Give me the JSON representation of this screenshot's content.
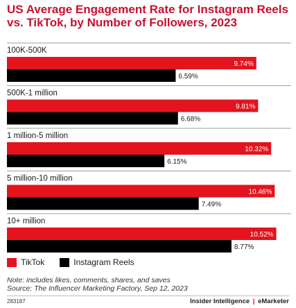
{
  "title": "US Average Engagement Rate for Instagram Reels vs. TikTok, by Number of Followers, 2023",
  "chart_data": {
    "type": "bar",
    "orientation": "horizontal",
    "categories": [
      "100K-500K",
      "500K-1 million",
      "1 million-5 million",
      "5 million-10 million",
      "10+ million"
    ],
    "series": [
      {
        "name": "TikTok",
        "values": [
          9.74,
          9.81,
          10.32,
          10.46,
          10.52
        ],
        "labels": [
          "9.74%",
          "9.81%",
          "10.32%",
          "10.46%",
          "10.52%"
        ],
        "color": "#e3141e"
      },
      {
        "name": "Instagram Reels",
        "values": [
          6.59,
          6.68,
          6.15,
          7.49,
          8.77
        ],
        "labels": [
          "6.59%",
          "6.68%",
          "6.15%",
          "7.49%",
          "8.77%"
        ],
        "color": "#000000"
      }
    ],
    "value_unit": "%",
    "xlim": [
      0,
      11.1
    ],
    "legend_position": "bottom-left",
    "grid": false
  },
  "legend": [
    {
      "label": "TikTok",
      "color": "#e3141e"
    },
    {
      "label": "Instagram Reels",
      "color": "#000000"
    }
  ],
  "notes": [
    "Note: includes likes, comments, shares, and saves",
    "Source: The Influencer Marketing Factory, Sep 12, 2023"
  ],
  "footer": {
    "chart_id": "283187",
    "brand_left": "Insider Intelligence",
    "brand_separator": "|",
    "brand_right": "eMarketer"
  }
}
